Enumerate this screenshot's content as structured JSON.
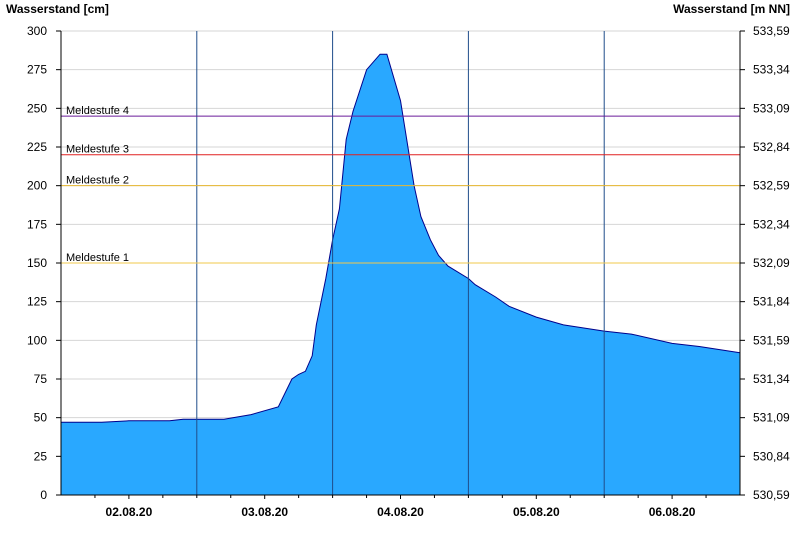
{
  "colors": {
    "area": "#29a8ff",
    "line": "#00008b",
    "meldestufe_1": "#f2c84b",
    "meldestufe_2": "#e8b830",
    "meldestufe_3": "#e02020",
    "meldestufe_4": "#6a1b9a"
  },
  "chart_data": {
    "type": "area",
    "left_axis_label": "Wasserstand [cm]",
    "right_axis_label": "Wasserstand [m NN]",
    "grid": true,
    "xlim": [
      0,
      5
    ],
    "x_unit": "days from 01.08.20 12:00",
    "ylim": [
      0,
      300
    ],
    "y_ticks": [
      0,
      25,
      50,
      75,
      100,
      125,
      150,
      175,
      200,
      225,
      250,
      275,
      300
    ],
    "right_ticks": [
      {
        "cm": 0,
        "label": "530,59"
      },
      {
        "cm": 25,
        "label": "530,84"
      },
      {
        "cm": 50,
        "label": "531,09"
      },
      {
        "cm": 75,
        "label": "531,34"
      },
      {
        "cm": 100,
        "label": "531,59"
      },
      {
        "cm": 125,
        "label": "531,84"
      },
      {
        "cm": 150,
        "label": "532,09"
      },
      {
        "cm": 175,
        "label": "532,34"
      },
      {
        "cm": 200,
        "label": "532,59"
      },
      {
        "cm": 225,
        "label": "532,84"
      },
      {
        "cm": 250,
        "label": "533,09"
      },
      {
        "cm": 275,
        "label": "533,34"
      },
      {
        "cm": 300,
        "label": "533,59"
      }
    ],
    "x_ticks": [
      {
        "x": 0.5,
        "label": "02.08.20"
      },
      {
        "x": 1.5,
        "label": "03.08.20"
      },
      {
        "x": 2.5,
        "label": "04.08.20"
      },
      {
        "x": 3.5,
        "label": "05.08.20"
      },
      {
        "x": 4.5,
        "label": "06.08.20"
      }
    ],
    "day_separators": [
      1,
      2,
      3,
      4
    ],
    "thresholds": [
      {
        "name": "Meldestufe 1",
        "value": 150,
        "color_key": "meldestufe_1"
      },
      {
        "name": "Meldestufe 2",
        "value": 200,
        "color_key": "meldestufe_2"
      },
      {
        "name": "Meldestufe 3",
        "value": 220,
        "color_key": "meldestufe_3"
      },
      {
        "name": "Meldestufe 4",
        "value": 245,
        "color_key": "meldestufe_4"
      }
    ],
    "series": [
      {
        "x": [
          0,
          0.1,
          0.3,
          0.5,
          0.6,
          0.8,
          0.9,
          1.0,
          1.2,
          1.4,
          1.6,
          1.7,
          1.75,
          1.8,
          1.85,
          1.88,
          1.95,
          2.0,
          2.05,
          2.1,
          2.15,
          2.25,
          2.35,
          2.4,
          2.5,
          2.6,
          2.65,
          2.72,
          2.78,
          2.85,
          3.0,
          3.05,
          3.2,
          3.3,
          3.5,
          3.7,
          4.0,
          4.2,
          4.5,
          4.7,
          5.0
        ],
        "y": [
          47,
          47,
          47,
          48,
          48,
          48,
          49,
          49,
          49,
          52,
          57,
          75,
          78,
          80,
          90,
          110,
          140,
          165,
          185,
          230,
          248,
          275,
          285,
          285,
          255,
          200,
          180,
          165,
          155,
          148,
          140,
          136,
          128,
          122,
          115,
          110,
          106,
          104,
          98,
          96,
          92
        ]
      }
    ]
  }
}
